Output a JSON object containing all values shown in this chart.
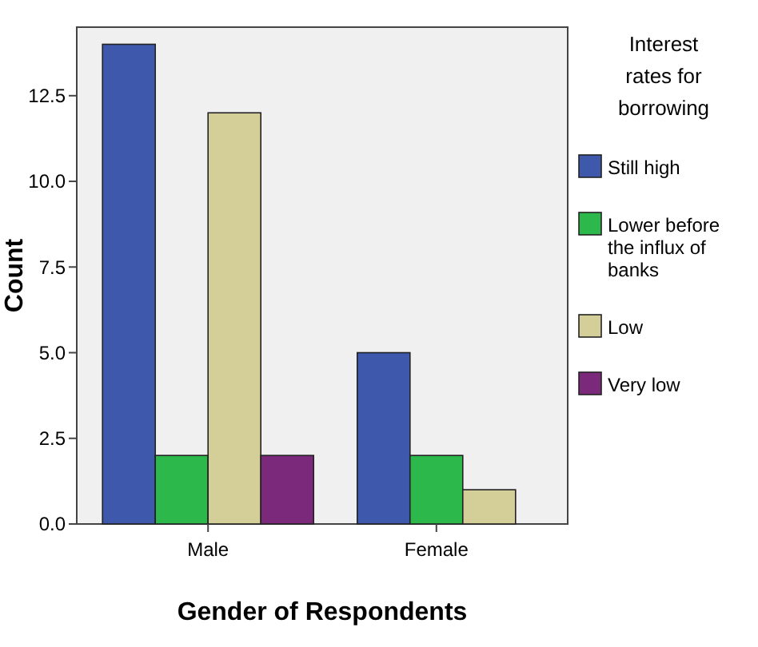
{
  "chart_data": {
    "type": "bar",
    "xlabel": "Gender of Respondents",
    "ylabel": "Count",
    "legend_title": "Interest rates for borrowing",
    "categories": [
      "Male",
      "Female"
    ],
    "series": [
      {
        "name": "Still high",
        "color": "#3e58ac",
        "values": [
          14,
          5
        ]
      },
      {
        "name": "Lower before the influx of banks",
        "color": "#2db84b",
        "values": [
          2,
          2
        ]
      },
      {
        "name": "Low",
        "color": "#d4cf98",
        "values": [
          12,
          1
        ]
      },
      {
        "name": "Very low",
        "color": "#7b2a7b",
        "values": [
          2,
          null
        ]
      }
    ],
    "ylim": [
      0,
      14.5
    ],
    "yticks": [
      {
        "value": 0,
        "label": "0.0"
      },
      {
        "value": 2.5,
        "label": "2.5"
      },
      {
        "value": 5,
        "label": "5.0"
      },
      {
        "value": 7.5,
        "label": "7.5"
      },
      {
        "value": 10,
        "label": "10.0"
      },
      {
        "value": 12.5,
        "label": "12.5"
      }
    ],
    "grid": false,
    "legend": "right"
  }
}
